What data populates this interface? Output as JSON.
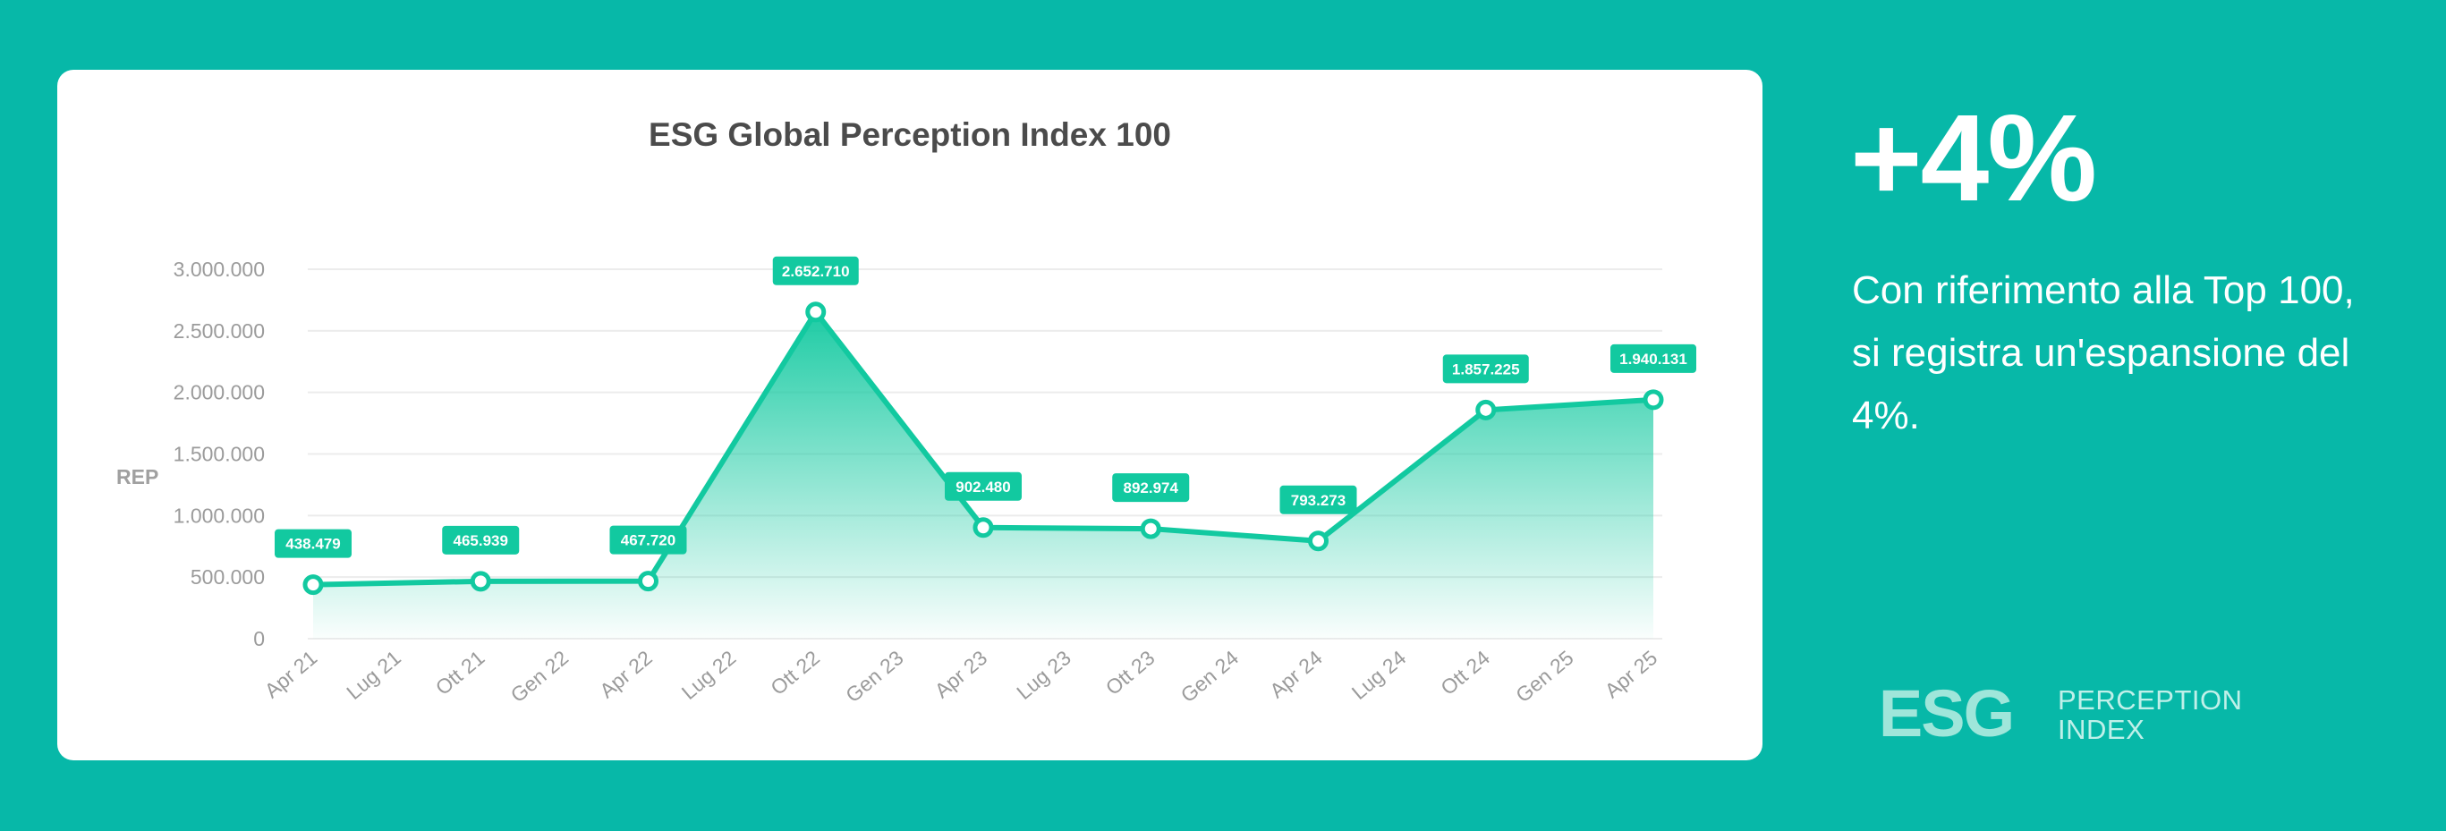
{
  "chart_data": {
    "type": "area",
    "title": "ESG Global Perception Index 100",
    "ylabel": "REP",
    "xlabel": "",
    "x_ticks": [
      "Apr 21",
      "Lug 21",
      "Ott 21",
      "Gen 22",
      "Apr 22",
      "Lug 22",
      "Ott 22",
      "Gen 23",
      "Apr 23",
      "Lug 23",
      "Ott 23",
      "Gen 24",
      "Apr 24",
      "Lug 24",
      "Ott 24",
      "Gen 25",
      "Apr 25"
    ],
    "y_ticks": [
      "3.000.000",
      "2.500.000",
      "2.000.000",
      "1.500.000",
      "1.000.000",
      "500.000",
      "0"
    ],
    "ylim": [
      0,
      3000000
    ],
    "grid": "horizontal",
    "legend": "none",
    "series": [
      {
        "points": [
          {
            "x": "Apr 21",
            "y": 438479,
            "label": "438.479"
          },
          {
            "x": "Ott 21",
            "y": 465939,
            "label": "465.939"
          },
          {
            "x": "Apr 22",
            "y": 467720,
            "label": "467.720"
          },
          {
            "x": "Ott 22",
            "y": 2652710,
            "label": "2.652.710"
          },
          {
            "x": "Apr 23",
            "y": 902480,
            "label": "902.480"
          },
          {
            "x": "Ott 23",
            "y": 892974,
            "label": "892.974"
          },
          {
            "x": "Apr 24",
            "y": 793273,
            "label": "793.273"
          },
          {
            "x": "Ott 24",
            "y": 1857225,
            "label": "1.857.225"
          },
          {
            "x": "Apr 25",
            "y": 1940131,
            "label": "1.940.131"
          }
        ]
      }
    ],
    "colors": {
      "line": "#12c9a0",
      "label_bg": "#12c9a0",
      "grid": "#ececec",
      "tick_text": "#9b9b9b"
    }
  },
  "highlight": {
    "stat": "+4%",
    "description": "Con riferimento alla Top 100, si registra un'espansione del 4%."
  },
  "logo": {
    "mark": "ESG",
    "line1": "PERCEPTION",
    "line2": "INDEX"
  },
  "colors": {
    "background": "#07b8a8",
    "card": "#ffffff"
  }
}
